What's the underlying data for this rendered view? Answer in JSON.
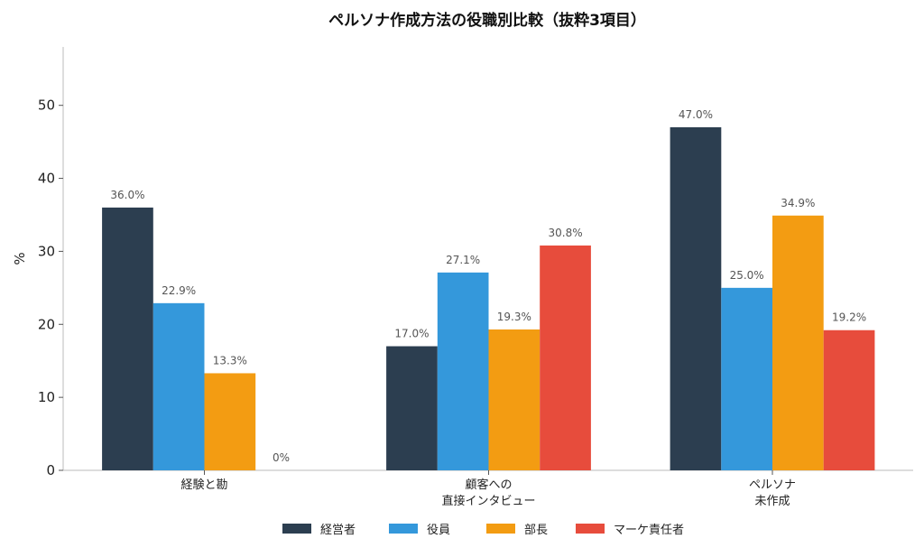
{
  "chart_data": {
    "type": "bar",
    "title": "ペルソナ作成方法の役職別比較（抜粋3項目）",
    "xlabel": "",
    "ylabel": "%",
    "ylim": [
      0,
      58
    ],
    "yticks": [
      0,
      10,
      20,
      30,
      40,
      50
    ],
    "grid": false,
    "legend_position": "bottom",
    "categories": [
      [
        "経験と勘"
      ],
      [
        "顧客への",
        "直接インタビュー"
      ],
      [
        "ペルソナ",
        "未作成"
      ]
    ],
    "series": [
      {
        "name": "経営者",
        "color": "#2c3e50",
        "values": [
          36.0,
          17.0,
          47.0
        ],
        "labels": [
          "36.0%",
          "17.0%",
          "47.0%"
        ]
      },
      {
        "name": "役員",
        "color": "#3498db",
        "values": [
          22.9,
          27.1,
          25.0
        ],
        "labels": [
          "22.9%",
          "27.1%",
          "25.0%"
        ]
      },
      {
        "name": "部長",
        "color": "#f39c12",
        "values": [
          13.3,
          19.3,
          34.9
        ],
        "labels": [
          "13.3%",
          "19.3%",
          "34.9%"
        ]
      },
      {
        "name": "マーケ責任者",
        "color": "#e74c3c",
        "values": [
          0,
          30.8,
          19.2
        ],
        "labels": [
          "0%",
          "30.8%",
          "19.2%"
        ]
      }
    ]
  }
}
